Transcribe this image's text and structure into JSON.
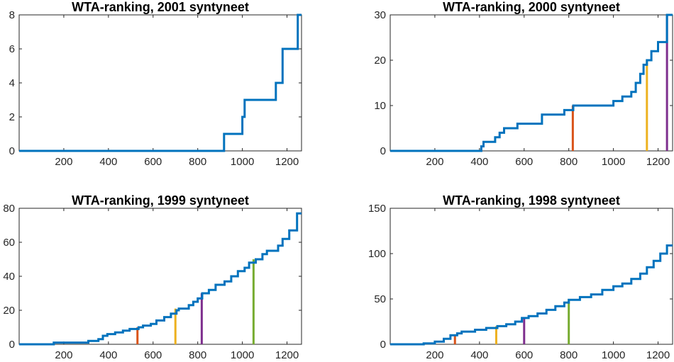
{
  "chart_data": [
    {
      "type": "line",
      "title": "WTA-ranking, 2001 syntyneet",
      "xlim": [
        0,
        1265
      ],
      "ylim": [
        0,
        8
      ],
      "xticks": [
        "200",
        "400",
        "600",
        "800",
        "1000",
        "1200"
      ],
      "yticks": [
        "0",
        "2",
        "4",
        "6",
        "8"
      ],
      "grid": false,
      "series": [
        {
          "values": [
            [
              0,
              0
            ],
            [
              918,
              0
            ],
            [
              918,
              1
            ],
            [
              1000,
              1
            ],
            [
              1000,
              2
            ],
            [
              1010,
              2
            ],
            [
              1010,
              3
            ],
            [
              1150,
              3
            ],
            [
              1150,
              4
            ],
            [
              1180,
              4
            ],
            [
              1180,
              6
            ],
            [
              1248,
              6
            ],
            [
              1248,
              8
            ],
            [
              1265,
              8
            ]
          ]
        }
      ],
      "vlines": []
    },
    {
      "type": "line",
      "title": "WTA-ranking, 2000 syntyneet",
      "xlim": [
        0,
        1265
      ],
      "ylim": [
        0,
        30
      ],
      "xticks": [
        "200",
        "400",
        "600",
        "800",
        "1000",
        "1200"
      ],
      "yticks": [
        "0",
        "10",
        "20",
        "30"
      ],
      "grid": false,
      "series": [
        {
          "values": [
            [
              0,
              0
            ],
            [
              408,
              0
            ],
            [
              408,
              1
            ],
            [
              418,
              1
            ],
            [
              418,
              2
            ],
            [
              470,
              2
            ],
            [
              470,
              3
            ],
            [
              490,
              3
            ],
            [
              490,
              4
            ],
            [
              510,
              4
            ],
            [
              510,
              5
            ],
            [
              570,
              5
            ],
            [
              570,
              6
            ],
            [
              680,
              6
            ],
            [
              680,
              8
            ],
            [
              780,
              8
            ],
            [
              780,
              9
            ],
            [
              820,
              9
            ],
            [
              820,
              10
            ],
            [
              1000,
              10
            ],
            [
              1000,
              11
            ],
            [
              1040,
              11
            ],
            [
              1040,
              12
            ],
            [
              1080,
              12
            ],
            [
              1080,
              13
            ],
            [
              1100,
              13
            ],
            [
              1100,
              15
            ],
            [
              1120,
              15
            ],
            [
              1120,
              17
            ],
            [
              1135,
              17
            ],
            [
              1135,
              19
            ],
            [
              1150,
              19
            ],
            [
              1150,
              20
            ],
            [
              1170,
              20
            ],
            [
              1170,
              22
            ],
            [
              1200,
              22
            ],
            [
              1200,
              24
            ],
            [
              1240,
              24
            ],
            [
              1240,
              30
            ],
            [
              1265,
              30
            ]
          ]
        }
      ],
      "vlines": [
        {
          "x": 818,
          "y": 10,
          "color": "#D95319"
        },
        {
          "x": 1150,
          "y": 20,
          "color": "#EDB120"
        },
        {
          "x": 1240,
          "y": 30,
          "color": "#7E2F8E"
        }
      ]
    },
    {
      "type": "line",
      "title": "WTA-ranking, 1999 syntyneet",
      "xlim": [
        0,
        1265
      ],
      "ylim": [
        0,
        80
      ],
      "xticks": [
        "200",
        "400",
        "600",
        "800",
        "1000",
        "1200"
      ],
      "yticks": [
        "0",
        "20",
        "40",
        "60",
        "80"
      ],
      "grid": false,
      "series": [
        {
          "values": [
            [
              0,
              0
            ],
            [
              155,
              0
            ],
            [
              155,
              1
            ],
            [
              310,
              1
            ],
            [
              310,
              2
            ],
            [
              355,
              2
            ],
            [
              355,
              3
            ],
            [
              375,
              3
            ],
            [
              375,
              5
            ],
            [
              395,
              5
            ],
            [
              395,
              6
            ],
            [
              430,
              6
            ],
            [
              430,
              7
            ],
            [
              465,
              7
            ],
            [
              465,
              8
            ],
            [
              495,
              8
            ],
            [
              495,
              9
            ],
            [
              535,
              9
            ],
            [
              535,
              10
            ],
            [
              555,
              10
            ],
            [
              555,
              11
            ],
            [
              590,
              11
            ],
            [
              590,
              12
            ],
            [
              615,
              12
            ],
            [
              615,
              14
            ],
            [
              650,
              14
            ],
            [
              650,
              16
            ],
            [
              680,
              16
            ],
            [
              680,
              18
            ],
            [
              705,
              18
            ],
            [
              705,
              20
            ],
            [
              715,
              20
            ],
            [
              715,
              21
            ],
            [
              760,
              21
            ],
            [
              760,
              23
            ],
            [
              780,
              23
            ],
            [
              780,
              25
            ],
            [
              800,
              25
            ],
            [
              800,
              27
            ],
            [
              820,
              27
            ],
            [
              820,
              30
            ],
            [
              850,
              30
            ],
            [
              850,
              32
            ],
            [
              880,
              32
            ],
            [
              880,
              35
            ],
            [
              920,
              35
            ],
            [
              920,
              37
            ],
            [
              950,
              37
            ],
            [
              950,
              40
            ],
            [
              980,
              40
            ],
            [
              980,
              43
            ],
            [
              1010,
              43
            ],
            [
              1010,
              45
            ],
            [
              1030,
              45
            ],
            [
              1030,
              48
            ],
            [
              1060,
              48
            ],
            [
              1060,
              50
            ],
            [
              1090,
              50
            ],
            [
              1090,
              53
            ],
            [
              1110,
              53
            ],
            [
              1110,
              55
            ],
            [
              1160,
              55
            ],
            [
              1160,
              58
            ],
            [
              1180,
              58
            ],
            [
              1180,
              62
            ],
            [
              1210,
              62
            ],
            [
              1210,
              67
            ],
            [
              1245,
              67
            ],
            [
              1245,
              77
            ],
            [
              1265,
              77
            ]
          ]
        }
      ],
      "vlines": [
        {
          "x": 530,
          "y": 10,
          "color": "#D95319"
        },
        {
          "x": 700,
          "y": 21,
          "color": "#EDB120"
        },
        {
          "x": 818,
          "y": 30,
          "color": "#7E2F8E"
        },
        {
          "x": 1050,
          "y": 50,
          "color": "#77AC30"
        }
      ]
    },
    {
      "type": "line",
      "title": "WTA-ranking, 1998 syntyneet",
      "xlim": [
        0,
        1265
      ],
      "ylim": [
        0,
        150
      ],
      "xticks": [
        "200",
        "400",
        "600",
        "800",
        "1000",
        "1200"
      ],
      "yticks": [
        "0",
        "50",
        "100",
        "150"
      ],
      "grid": false,
      "series": [
        {
          "values": [
            [
              0,
              0
            ],
            [
              150,
              0
            ],
            [
              150,
              1
            ],
            [
              200,
              1
            ],
            [
              200,
              3
            ],
            [
              240,
              3
            ],
            [
              240,
              6
            ],
            [
              270,
              6
            ],
            [
              270,
              10
            ],
            [
              300,
              10
            ],
            [
              300,
              12
            ],
            [
              320,
              12
            ],
            [
              320,
              14
            ],
            [
              380,
              14
            ],
            [
              380,
              16
            ],
            [
              430,
              16
            ],
            [
              430,
              18
            ],
            [
              480,
              18
            ],
            [
              480,
              20
            ],
            [
              520,
              20
            ],
            [
              520,
              22
            ],
            [
              560,
              22
            ],
            [
              560,
              25
            ],
            [
              590,
              25
            ],
            [
              590,
              29
            ],
            [
              620,
              29
            ],
            [
              620,
              31
            ],
            [
              660,
              31
            ],
            [
              660,
              34
            ],
            [
              700,
              34
            ],
            [
              700,
              38
            ],
            [
              740,
              38
            ],
            [
              740,
              42
            ],
            [
              780,
              42
            ],
            [
              780,
              46
            ],
            [
              800,
              46
            ],
            [
              800,
              49
            ],
            [
              850,
              49
            ],
            [
              850,
              52
            ],
            [
              900,
              52
            ],
            [
              900,
              55
            ],
            [
              950,
              55
            ],
            [
              950,
              60
            ],
            [
              1000,
              60
            ],
            [
              1000,
              64
            ],
            [
              1040,
              64
            ],
            [
              1040,
              67
            ],
            [
              1080,
              67
            ],
            [
              1080,
              72
            ],
            [
              1120,
              72
            ],
            [
              1120,
              78
            ],
            [
              1150,
              78
            ],
            [
              1150,
              85
            ],
            [
              1180,
              85
            ],
            [
              1180,
              92
            ],
            [
              1210,
              92
            ],
            [
              1210,
              100
            ],
            [
              1240,
              100
            ],
            [
              1240,
              109
            ],
            [
              1265,
              109
            ]
          ]
        }
      ],
      "vlines": [
        {
          "x": 290,
          "y": 10,
          "color": "#D95319"
        },
        {
          "x": 475,
          "y": 20,
          "color": "#EDB120"
        },
        {
          "x": 600,
          "y": 30,
          "color": "#7E2F8E"
        },
        {
          "x": 800,
          "y": 50,
          "color": "#77AC30"
        }
      ]
    }
  ]
}
